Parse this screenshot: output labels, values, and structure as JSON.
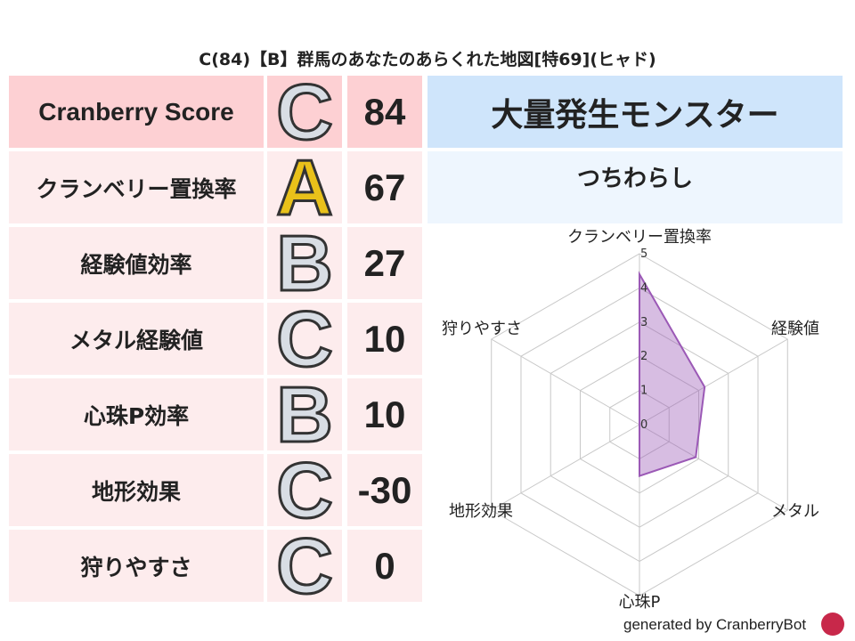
{
  "title": "C(84)【B】群馬のあなたのあらくれた地図[特69](ヒャド)",
  "rows": [
    {
      "label": "Cranberry Score",
      "grade": "C",
      "value": "84"
    },
    {
      "label": "クランベリー置換率",
      "grade": "A",
      "value": "67"
    },
    {
      "label": "経験値効率",
      "grade": "B",
      "value": "27"
    },
    {
      "label": "メタル経験値",
      "grade": "C",
      "value": "10"
    },
    {
      "label": "心珠P効率",
      "grade": "B",
      "value": "10"
    },
    {
      "label": "地形効果",
      "grade": "C",
      "value": "-30"
    },
    {
      "label": "狩りやすさ",
      "grade": "C",
      "value": "0"
    }
  ],
  "colors": {
    "score_row": "#fdd0d3",
    "other_rows": "#fdeced",
    "header": "#cfe5fb",
    "subheader": "#eef6fe",
    "series": "#9b59b6"
  },
  "monster": {
    "heading": "大量発生モンスター",
    "name": "つちわらし"
  },
  "chart_data": {
    "type": "radar",
    "axes": [
      "クランベリー置換率",
      "経験値",
      "メタル",
      "心珠P",
      "地形効果",
      "狩りやすさ"
    ],
    "values": [
      4.4,
      2.2,
      1.9,
      1.5,
      0,
      0
    ],
    "range": [
      0,
      5
    ],
    "ticks": [
      "0",
      "1",
      "2",
      "3",
      "4",
      "5"
    ],
    "grid": true
  },
  "footer": "generated by CranberryBot",
  "footer_icon": "cranberry-mascot-icon"
}
